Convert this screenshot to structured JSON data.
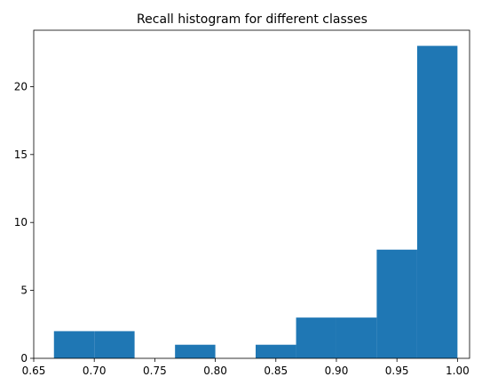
{
  "chart_data": {
    "type": "bar",
    "title": "Recall histogram for different classes",
    "xlabel": "",
    "ylabel": "",
    "bins": [
      {
        "start": 0.6667,
        "end": 0.7,
        "count": 2
      },
      {
        "start": 0.7,
        "end": 0.7333,
        "count": 2
      },
      {
        "start": 0.7333,
        "end": 0.7667,
        "count": 0
      },
      {
        "start": 0.7667,
        "end": 0.8,
        "count": 1
      },
      {
        "start": 0.8,
        "end": 0.8333,
        "count": 0
      },
      {
        "start": 0.8333,
        "end": 0.8667,
        "count": 1
      },
      {
        "start": 0.8667,
        "end": 0.9,
        "count": 3
      },
      {
        "start": 0.9,
        "end": 0.9333,
        "count": 3
      },
      {
        "start": 0.9333,
        "end": 0.9667,
        "count": 8
      },
      {
        "start": 0.9667,
        "end": 1.0,
        "count": 23
      }
    ],
    "xlim": [
      0.65,
      1.01
    ],
    "ylim": [
      0,
      24.15
    ],
    "xticks": [
      0.65,
      0.7,
      0.75,
      0.8,
      0.85,
      0.9,
      0.95,
      1.0
    ],
    "xtick_labels": [
      "0.65",
      "0.70",
      "0.75",
      "0.80",
      "0.85",
      "0.90",
      "0.95",
      "1.00"
    ],
    "yticks": [
      0,
      5,
      10,
      15,
      20
    ],
    "ytick_labels": [
      "0",
      "5",
      "10",
      "15",
      "20"
    ],
    "bar_color": "#1f77b4",
    "grid": false,
    "legend": "none"
  }
}
